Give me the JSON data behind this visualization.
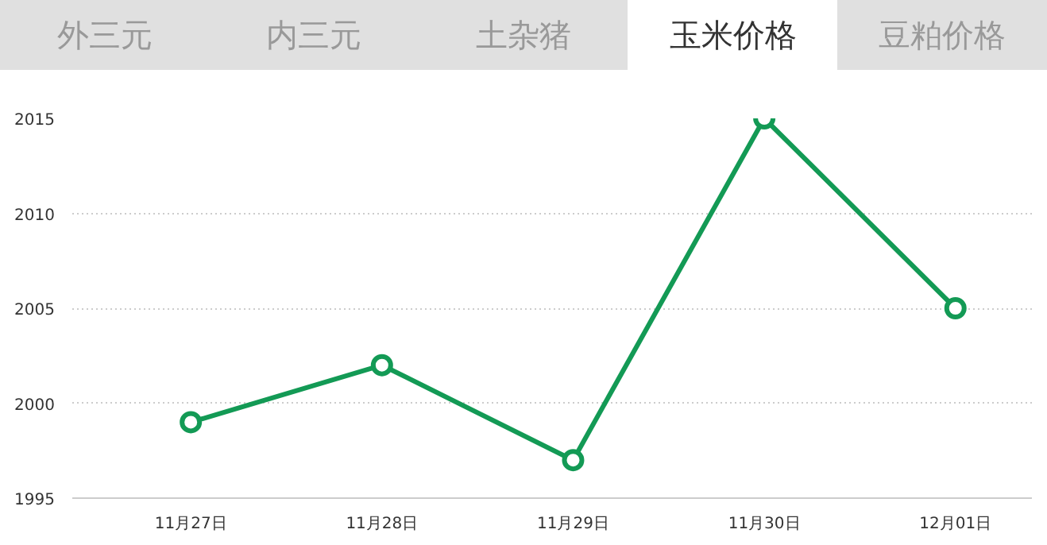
{
  "chart_data": {
    "type": "line",
    "title": "玉米价格",
    "annotations": [
      "外三元",
      "内三元",
      "土杂猪",
      "豆粕价格"
    ],
    "categories": [
      "11月27日",
      "11月28日",
      "11月29日",
      "11月30日",
      "12月01日"
    ],
    "series": [
      {
        "color": "#139a55",
        "values": [
          1999,
          2002,
          1997,
          2015,
          2005
        ]
      }
    ],
    "ylim": [
      1995,
      2015
    ],
    "yticks": [
      1995,
      2000,
      2005,
      2010,
      2015
    ],
    "grid": "y",
    "marker": "circle",
    "line_style": "solid"
  }
}
